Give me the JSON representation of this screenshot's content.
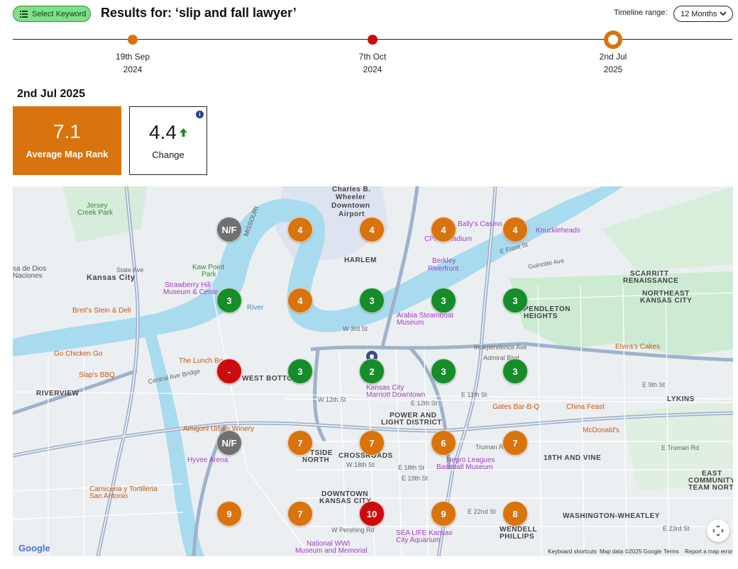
{
  "header": {
    "select_keyword_label": "Select Keyword",
    "results_title": "Results for: ‘slip and fall lawyer’",
    "timeline_range_label": "Timeline range:",
    "timeline_range_value": "12 Months"
  },
  "timeline": {
    "points": [
      {
        "day": "19th Sep",
        "year": "2024",
        "color": "#d9730d"
      },
      {
        "day": "7th Oct",
        "year": "2024",
        "color": "#cc0c0c"
      },
      {
        "day": "2nd Jul",
        "year": "2025",
        "color": "#d9730d",
        "selected": true
      }
    ]
  },
  "summary": {
    "current_date": "2nd Jul 2025",
    "average_rank_value": "7.1",
    "average_rank_label": "Average Map Rank",
    "change_value": "4.4",
    "change_label": "Change",
    "change_direction": "up",
    "info_icon": "info-icon"
  },
  "map": {
    "labels": {
      "charles": "Charles B.",
      "wheeler": "Wheeler",
      "downtown": "Downtown",
      "airport": "Airport",
      "jersey": "Jersey",
      "creek": "Creek Park",
      "missouri": "MISSOURI",
      "harlem": "HARLEM",
      "ballys": "Bally's Casino",
      "knuckleheads": "Knuckleheads",
      "cpkc": "CPKC Stadium",
      "e_front": "E Front St",
      "berkley": "Berkley",
      "riverfront": "Riverfront",
      "guinotte": "Guinotte Ave",
      "scarritt": "SCARRITT",
      "renaissance": "RENAISSANCE",
      "ne_kc1": "NORTHEAST",
      "ne_kc2": "KANSAS CITY",
      "sa_de_dios": "sa de Dios",
      "naciones": "Naciones",
      "state_ave": "State Ave",
      "kansas_city": "Kansas City",
      "kaw_point": "Kaw Point",
      "park": "Park",
      "strawberry": "Strawberry Hill",
      "museum_center": "Museum & Cente",
      "breits": "Breit's Stein & Deli",
      "arabia1": "Arabia Steamboat",
      "arabia2": "Museum",
      "pendleton1": "PENDLETON",
      "pendleton2": "HEIGHTS",
      "w3rd": "W 3rd St",
      "independence": "Independence Ave",
      "elviras": "Elvira's Cakes",
      "go_chicken": "Go Chicken Go",
      "lunch_box": "The Lunch Bo",
      "slaps": "Slap's BBQ",
      "west_bottoms": "WEST BOTTOMS",
      "riverview": "RIVERVIEW",
      "marriott1": "Kansas City",
      "marriott2": "Marriott Downtown",
      "e9th": "E 9th St",
      "lykins": "LYKINS",
      "gates": "Gates Bar-B-Q",
      "china_feast": "China Feast",
      "power1": "POWER AND",
      "power2": "LIGHT DISTRICT",
      "amigoni": "Amigoni Urban Winery",
      "mcdonalds": "McDonald's",
      "hyvee": "Hyvee Arena",
      "crossroads": "CROSSROADS",
      "westside1": "TSIDE",
      "westside2": "NORTH",
      "negro1": "Negro Leagues",
      "negro2": "Baseball Museum",
      "18th_vine": "18TH AND VINE",
      "east_comm1": "EAST",
      "east_comm2": "COMMUNITY",
      "east_comm3": "TEAM NORTH",
      "carniceria1": "Carniceria y Tortilleria",
      "carniceria2": "San Antonio",
      "downtown_kc1": "DOWNTOWN",
      "downtown_kc2": "KANSAS CITY",
      "e_truman": "E Truman Rd",
      "truman": "Truman Rd",
      "wash1": "WASHINGTON-WHEATLEY",
      "wendell1": "WENDELL",
      "wendell2": "PHILLIPS",
      "sealife1": "SEA LIFE Kansas",
      "sealife2": "City Aquarium",
      "wwi1": "National WWI",
      "wwi2": "Museum and Memorial",
      "e23rd": "E 23rd St",
      "e22nd": "E 22nd St",
      "w18th": "W 18th St",
      "e18th": "E 18th St",
      "e19th": "E 19th St",
      "w12th": "W 12th St",
      "e12th": "E 12th St",
      "e11th": "E 11th St",
      "w_pershing": "W Pershing Rd",
      "admiral": "Admiral Blvd",
      "central_ave": "Central Ave Bridge",
      "river": "River"
    },
    "ranks": [
      {
        "value": "N/F",
        "color": "gray"
      },
      {
        "value": "4",
        "color": "orange"
      },
      {
        "value": "4",
        "color": "orange"
      },
      {
        "value": "4",
        "color": "orange"
      },
      {
        "value": "4",
        "color": "orange"
      },
      {
        "value": "3",
        "color": "green"
      },
      {
        "value": "4",
        "color": "orange"
      },
      {
        "value": "3",
        "color": "green"
      },
      {
        "value": "3",
        "color": "green"
      },
      {
        "value": "3",
        "color": "green"
      },
      {
        "value": "-",
        "color": "red"
      },
      {
        "value": "3",
        "color": "green"
      },
      {
        "value": "2",
        "color": "green"
      },
      {
        "value": "3",
        "color": "green"
      },
      {
        "value": "3",
        "color": "green"
      },
      {
        "value": "N/F",
        "color": "gray"
      },
      {
        "value": "7",
        "color": "orange"
      },
      {
        "value": "7",
        "color": "orange"
      },
      {
        "value": "6",
        "color": "orange"
      },
      {
        "value": "7",
        "color": "orange"
      },
      {
        "value": "9",
        "color": "orange"
      },
      {
        "value": "7",
        "color": "orange"
      },
      {
        "value": "10",
        "color": "red"
      },
      {
        "value": "9",
        "color": "orange"
      },
      {
        "value": "8",
        "color": "orange"
      }
    ],
    "google": "Google",
    "attribution": {
      "shortcuts": "Keyboard shortcuts",
      "mapdata": "Map data ©2025 Google",
      "terms": "Terms",
      "report": "Report a map error"
    }
  }
}
